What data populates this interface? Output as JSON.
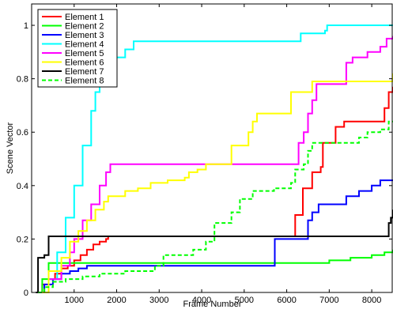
{
  "chart_data": {
    "type": "line",
    "xlabel": "Frame Number",
    "ylabel": "Scene Vector",
    "xlim": [
      0,
      8500
    ],
    "ylim": [
      0,
      1.08
    ],
    "xticks": [
      1000,
      2000,
      3000,
      4000,
      5000,
      6000,
      7000,
      8000
    ],
    "yticks": [
      0,
      0.2,
      0.4,
      0.6,
      0.8,
      1
    ],
    "ytick_labels": [
      "0",
      "0.2",
      "0.4",
      "0.6",
      "0.8",
      "1"
    ],
    "grid": false,
    "legend": "top-left",
    "series": [
      {
        "name": "Element 1",
        "color": "#ff0000",
        "dash": "solid",
        "points": [
          [
            120,
            0
          ],
          [
            250,
            0.03
          ],
          [
            400,
            0.05
          ],
          [
            550,
            0.07
          ],
          [
            700,
            0.09
          ],
          [
            850,
            0.1
          ],
          [
            1000,
            0.12
          ],
          [
            1150,
            0.14
          ],
          [
            1300,
            0.16
          ],
          [
            1450,
            0.18
          ],
          [
            1600,
            0.19
          ],
          [
            1750,
            0.2
          ],
          [
            1800,
            0.21
          ],
          [
            6120,
            0.21
          ],
          [
            6200,
            0.29
          ],
          [
            6320,
            0.29
          ],
          [
            6380,
            0.39
          ],
          [
            6550,
            0.39
          ],
          [
            6600,
            0.45
          ],
          [
            6800,
            0.47
          ],
          [
            6850,
            0.56
          ],
          [
            7000,
            0.56
          ],
          [
            7150,
            0.62
          ],
          [
            7350,
            0.64
          ],
          [
            8200,
            0.64
          ],
          [
            8300,
            0.69
          ],
          [
            8400,
            0.75
          ],
          [
            8500,
            0.77
          ]
        ]
      },
      {
        "name": "Element 2",
        "color": "#00ff00",
        "dash": "solid",
        "points": [
          [
            120,
            0
          ],
          [
            250,
            0.05
          ],
          [
            400,
            0.11
          ],
          [
            2000,
            0.11
          ],
          [
            4000,
            0.11
          ],
          [
            6000,
            0.11
          ],
          [
            6800,
            0.11
          ],
          [
            7000,
            0.12
          ],
          [
            7500,
            0.13
          ],
          [
            8000,
            0.14
          ],
          [
            8300,
            0.15
          ],
          [
            8500,
            0.16
          ]
        ]
      },
      {
        "name": "Element 3",
        "color": "#0000ff",
        "dash": "solid",
        "points": [
          [
            150,
            0
          ],
          [
            300,
            0.03
          ],
          [
            500,
            0.05
          ],
          [
            700,
            0.07
          ],
          [
            900,
            0.08
          ],
          [
            1100,
            0.09
          ],
          [
            1300,
            0.1
          ],
          [
            3000,
            0.1
          ],
          [
            5680,
            0.1
          ],
          [
            5720,
            0.2
          ],
          [
            6400,
            0.2
          ],
          [
            6500,
            0.27
          ],
          [
            6600,
            0.3
          ],
          [
            6750,
            0.33
          ],
          [
            7300,
            0.33
          ],
          [
            7400,
            0.36
          ],
          [
            7700,
            0.38
          ],
          [
            8000,
            0.4
          ],
          [
            8200,
            0.42
          ],
          [
            8500,
            0.42
          ]
        ]
      },
      {
        "name": "Element 4",
        "color": "#00ffff",
        "dash": "solid",
        "points": [
          [
            120,
            0
          ],
          [
            400,
            0.05
          ],
          [
            600,
            0.15
          ],
          [
            800,
            0.28
          ],
          [
            1000,
            0.4
          ],
          [
            1200,
            0.55
          ],
          [
            1400,
            0.68
          ],
          [
            1500,
            0.75
          ],
          [
            1600,
            0.8
          ],
          [
            1700,
            0.85
          ],
          [
            1900,
            0.86
          ],
          [
            2000,
            0.88
          ],
          [
            2200,
            0.91
          ],
          [
            2400,
            0.94
          ],
          [
            6230,
            0.94
          ],
          [
            6330,
            0.97
          ],
          [
            6900,
            0.98
          ],
          [
            6950,
            1.0
          ],
          [
            8500,
            1.0
          ]
        ]
      },
      {
        "name": "Element 5",
        "color": "#ff00ff",
        "dash": "solid",
        "points": [
          [
            150,
            0
          ],
          [
            400,
            0.05
          ],
          [
            700,
            0.1
          ],
          [
            900,
            0.15
          ],
          [
            1000,
            0.2
          ],
          [
            1200,
            0.27
          ],
          [
            1400,
            0.33
          ],
          [
            1600,
            0.4
          ],
          [
            1750,
            0.45
          ],
          [
            1850,
            0.48
          ],
          [
            6200,
            0.48
          ],
          [
            6280,
            0.56
          ],
          [
            6400,
            0.6
          ],
          [
            6500,
            0.67
          ],
          [
            6600,
            0.72
          ],
          [
            6700,
            0.78
          ],
          [
            7300,
            0.78
          ],
          [
            7400,
            0.86
          ],
          [
            7550,
            0.88
          ],
          [
            7900,
            0.9
          ],
          [
            8200,
            0.92
          ],
          [
            8350,
            0.95
          ],
          [
            8500,
            0.96
          ]
        ]
      },
      {
        "name": "Element 6",
        "color": "#ffff00",
        "dash": "solid",
        "points": [
          [
            150,
            0
          ],
          [
            400,
            0.08
          ],
          [
            700,
            0.13
          ],
          [
            900,
            0.19
          ],
          [
            1100,
            0.23
          ],
          [
            1300,
            0.27
          ],
          [
            1500,
            0.31
          ],
          [
            1700,
            0.34
          ],
          [
            1800,
            0.36
          ],
          [
            2100,
            0.36
          ],
          [
            2200,
            0.38
          ],
          [
            2500,
            0.39
          ],
          [
            2800,
            0.41
          ],
          [
            3200,
            0.42
          ],
          [
            3600,
            0.43
          ],
          [
            3700,
            0.45
          ],
          [
            3900,
            0.46
          ],
          [
            4100,
            0.48
          ],
          [
            4600,
            0.48
          ],
          [
            4700,
            0.55
          ],
          [
            5100,
            0.6
          ],
          [
            5200,
            0.64
          ],
          [
            5300,
            0.67
          ],
          [
            6050,
            0.67
          ],
          [
            6100,
            0.75
          ],
          [
            6550,
            0.75
          ],
          [
            6600,
            0.79
          ],
          [
            8350,
            0.79
          ],
          [
            8500,
            0.82
          ]
        ]
      },
      {
        "name": "Element 7",
        "color": "#000000",
        "dash": "solid",
        "points": [
          [
            100,
            0
          ],
          [
            150,
            0.13
          ],
          [
            300,
            0.14
          ],
          [
            400,
            0.21
          ],
          [
            7900,
            0.21
          ],
          [
            8350,
            0.21
          ],
          [
            8400,
            0.26
          ],
          [
            8450,
            0.28
          ],
          [
            8500,
            0.31
          ]
        ]
      },
      {
        "name": "Element 8",
        "color": "#00ff00",
        "dash": "dashed",
        "points": [
          [
            150,
            0
          ],
          [
            300,
            0.02
          ],
          [
            500,
            0.04
          ],
          [
            800,
            0.05
          ],
          [
            1200,
            0.06
          ],
          [
            1600,
            0.07
          ],
          [
            2200,
            0.08
          ],
          [
            2900,
            0.1
          ],
          [
            3100,
            0.14
          ],
          [
            3800,
            0.16
          ],
          [
            4100,
            0.19
          ],
          [
            4300,
            0.26
          ],
          [
            4700,
            0.3
          ],
          [
            4900,
            0.35
          ],
          [
            5200,
            0.38
          ],
          [
            5700,
            0.39
          ],
          [
            6100,
            0.41
          ],
          [
            6200,
            0.46
          ],
          [
            6400,
            0.48
          ],
          [
            6500,
            0.53
          ],
          [
            6600,
            0.56
          ],
          [
            7100,
            0.56
          ],
          [
            7300,
            0.56
          ],
          [
            7600,
            0.56
          ],
          [
            7700,
            0.58
          ],
          [
            7900,
            0.6
          ],
          [
            8200,
            0.61
          ],
          [
            8400,
            0.64
          ],
          [
            8500,
            0.64
          ]
        ]
      }
    ]
  }
}
